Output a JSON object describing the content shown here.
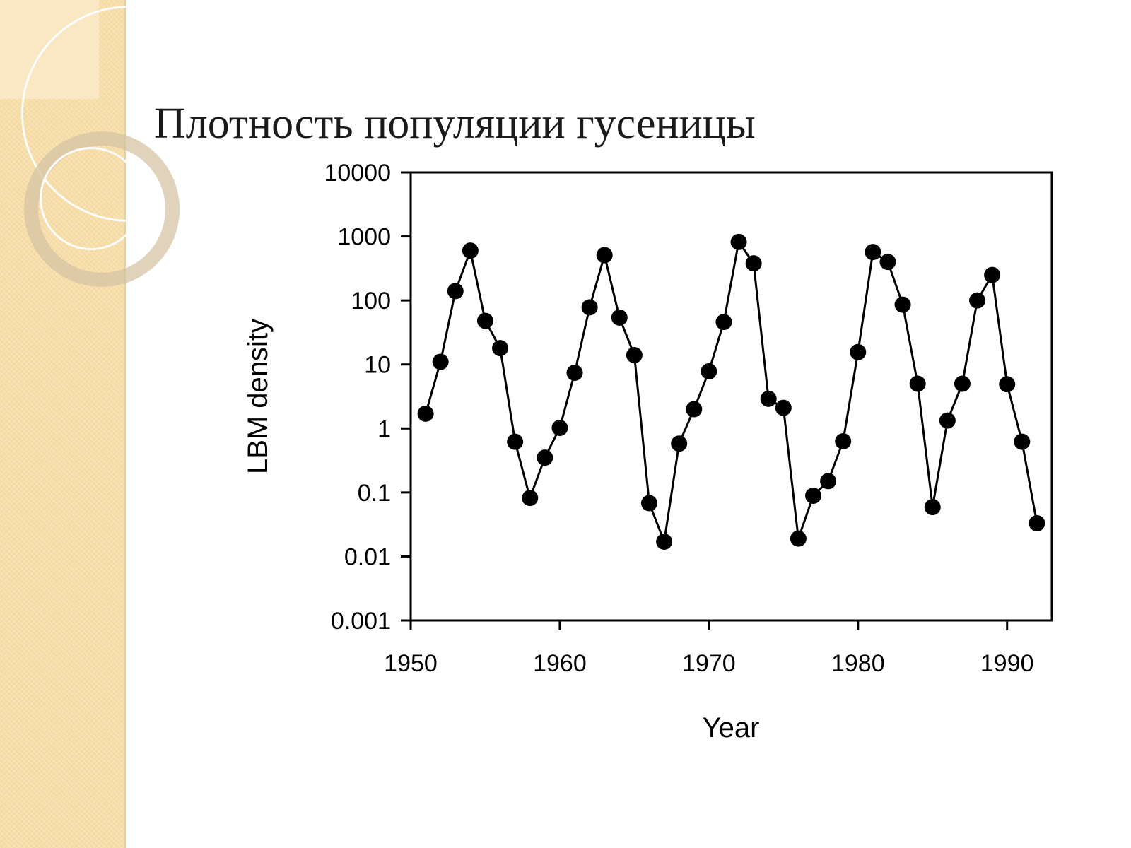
{
  "slide": {
    "title": "Плотность популяции гусеницы"
  },
  "chart_data": {
    "type": "line",
    "title": "",
    "xlabel": "Year",
    "ylabel": "LBM density",
    "xlim": [
      1950,
      1993
    ],
    "ylim": [
      0.001,
      10000
    ],
    "y_scale": "log",
    "x_ticks": [
      1950,
      1960,
      1970,
      1980,
      1990
    ],
    "y_ticks": [
      0.001,
      0.01,
      0.1,
      1,
      10,
      100,
      1000,
      10000
    ],
    "y_tick_labels": [
      "0.001",
      "0.01",
      "0.1",
      "1",
      "10",
      "100",
      "1000",
      "10000"
    ],
    "grid": false,
    "legend": "none",
    "markers": "filled-circle",
    "series": [
      {
        "color": "#000000",
        "x": [
          1951,
          1952,
          1953,
          1954,
          1955,
          1956,
          1957,
          1958,
          1959,
          1960,
          1961,
          1962,
          1963,
          1964,
          1965,
          1966,
          1967,
          1968,
          1969,
          1970,
          1971,
          1972,
          1973,
          1974,
          1975,
          1976,
          1977,
          1978,
          1979,
          1980,
          1981,
          1982,
          1983,
          1984,
          1985,
          1986,
          1987,
          1988,
          1989,
          1990,
          1991,
          1992
        ],
        "y": [
          1.7,
          11,
          140,
          600,
          48,
          18,
          0.62,
          0.082,
          0.35,
          1.02,
          7.4,
          78,
          510,
          54,
          14,
          0.068,
          0.017,
          0.58,
          2.0,
          7.8,
          46,
          820,
          380,
          2.9,
          2.1,
          0.019,
          0.089,
          0.15,
          0.63,
          15.6,
          570,
          400,
          86,
          5.0,
          0.059,
          1.33,
          5.0,
          100,
          250,
          4.9,
          0.62,
          0.033
        ]
      }
    ]
  }
}
